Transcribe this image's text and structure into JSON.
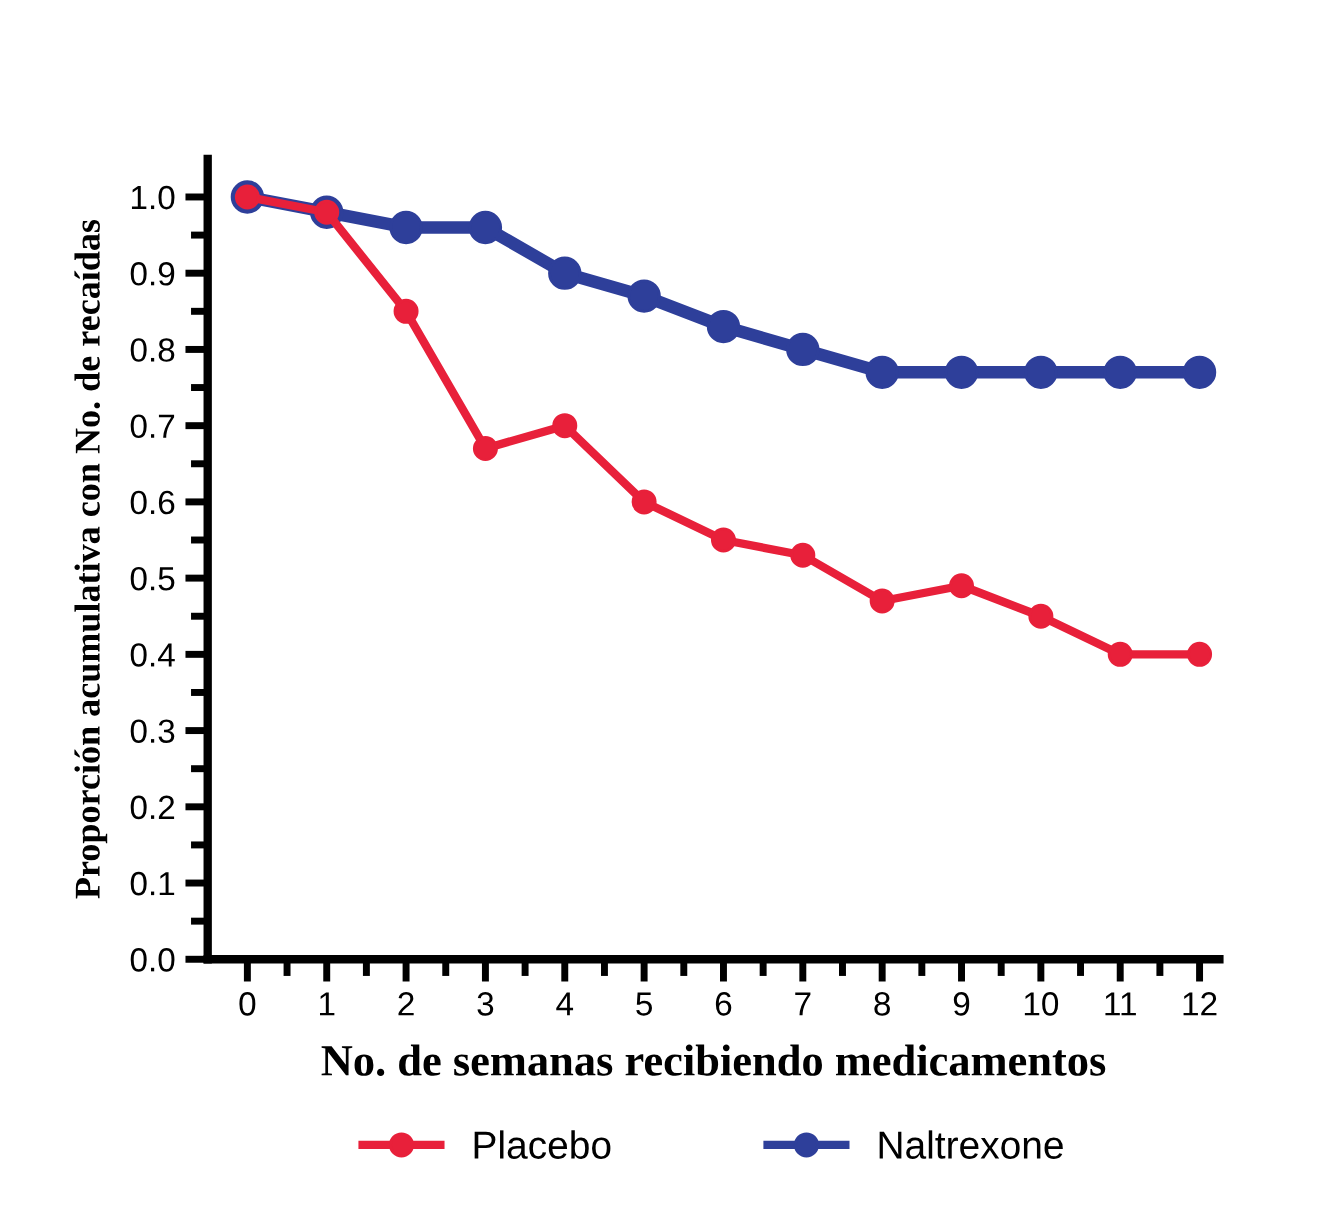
{
  "chart_data": {
    "type": "line",
    "xlabel": "No. de semanas recibiendo medicamentos",
    "ylabel": "Proporción acumulativa con No. de recaídas",
    "x": [
      0,
      1,
      2,
      3,
      4,
      5,
      6,
      7,
      8,
      9,
      10,
      11,
      12
    ],
    "series": [
      {
        "name": "Placebo",
        "color": "#e8203a",
        "values": [
          1.0,
          0.98,
          0.85,
          0.67,
          0.7,
          0.6,
          0.55,
          0.53,
          0.47,
          0.49,
          0.45,
          0.4,
          0.4
        ]
      },
      {
        "name": "Naltrexone",
        "color": "#2e3f9a",
        "values": [
          1.0,
          0.98,
          0.96,
          0.96,
          0.9,
          0.87,
          0.83,
          0.8,
          0.77,
          0.77,
          0.77,
          0.77,
          0.77
        ]
      }
    ],
    "xlim": [
      -0.5,
      12.25
    ],
    "xticks": [
      0,
      1,
      2,
      3,
      4,
      5,
      6,
      7,
      8,
      9,
      10,
      11,
      12
    ],
    "ylim": [
      0,
      1.05
    ],
    "yticks": [
      {
        "value": 0,
        "label": "0.0"
      },
      0.1,
      0.2,
      0.3,
      0.4,
      0.5,
      0.6,
      0.7,
      0.8,
      0.9,
      {
        "value": 1.0,
        "label": "1.0"
      }
    ],
    "marker": "circle",
    "line_style": "solid",
    "grid": false,
    "legend": "bottom"
  }
}
